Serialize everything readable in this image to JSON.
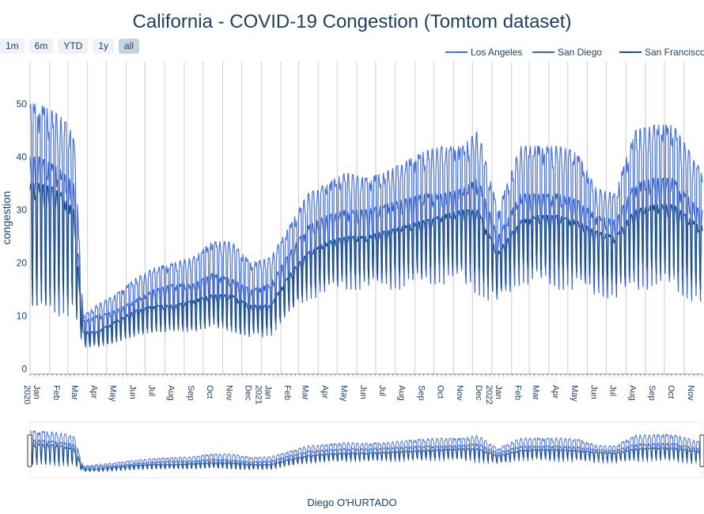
{
  "chart_data": {
    "type": "line",
    "title": "California - COVID-19 Congestion (Tomtom dataset)",
    "ylabel": "congestion",
    "xlabel": "",
    "footer": "Diego O'HURTADO",
    "x_range": [
      "2020-01-01",
      "2022-11-30"
    ],
    "ylim": [
      -1,
      58
    ],
    "yticks": [
      0,
      10,
      20,
      30,
      40,
      50
    ],
    "xticks": [
      {
        "date": "2020-01-01",
        "month": "Jan",
        "year": "2020"
      },
      {
        "date": "2020-02-01",
        "month": "Feb"
      },
      {
        "date": "2020-03-01",
        "month": "Mar"
      },
      {
        "date": "2020-04-01",
        "month": "Apr"
      },
      {
        "date": "2020-05-01",
        "month": "May"
      },
      {
        "date": "2020-06-01",
        "month": "Jun"
      },
      {
        "date": "2020-07-01",
        "month": "Jul"
      },
      {
        "date": "2020-08-01",
        "month": "Aug"
      },
      {
        "date": "2020-09-01",
        "month": "Sep"
      },
      {
        "date": "2020-10-01",
        "month": "Oct"
      },
      {
        "date": "2020-11-01",
        "month": "Nov"
      },
      {
        "date": "2020-12-01",
        "month": "Dec"
      },
      {
        "date": "2021-01-01",
        "month": "Jan",
        "year": "2021"
      },
      {
        "date": "2021-02-01",
        "month": "Feb"
      },
      {
        "date": "2021-03-01",
        "month": "Mar"
      },
      {
        "date": "2021-04-01",
        "month": "Apr"
      },
      {
        "date": "2021-05-01",
        "month": "May"
      },
      {
        "date": "2021-06-01",
        "month": "Jun"
      },
      {
        "date": "2021-07-01",
        "month": "Jul"
      },
      {
        "date": "2021-08-01",
        "month": "Aug"
      },
      {
        "date": "2021-09-01",
        "month": "Sep"
      },
      {
        "date": "2021-10-01",
        "month": "Oct"
      },
      {
        "date": "2021-11-01",
        "month": "Nov"
      },
      {
        "date": "2021-12-01",
        "month": "Dec"
      },
      {
        "date": "2022-01-01",
        "month": "Jan",
        "year": "2022"
      },
      {
        "date": "2022-02-01",
        "month": "Feb"
      },
      {
        "date": "2022-03-01",
        "month": "Mar"
      },
      {
        "date": "2022-04-01",
        "month": "Apr"
      },
      {
        "date": "2022-05-01",
        "month": "May"
      },
      {
        "date": "2022-06-01",
        "month": "Jun"
      },
      {
        "date": "2022-07-01",
        "month": "Jul"
      },
      {
        "date": "2022-08-01",
        "month": "Aug"
      },
      {
        "date": "2022-09-01",
        "month": "Sep"
      },
      {
        "date": "2022-10-01",
        "month": "Oct"
      },
      {
        "date": "2022-11-01",
        "month": "Nov"
      }
    ],
    "range_buttons": [
      "1m",
      "6m",
      "YTD",
      "1y",
      "all"
    ],
    "active_range": "all",
    "legend_position": "top-right",
    "grid": true,
    "range_slider": true,
    "series": [
      {
        "name": "Los Angeles",
        "color": "#4a72d6",
        "monthly": [
          {
            "date": "2020-01-15",
            "high": 50,
            "low": 12
          },
          {
            "date": "2020-02-15",
            "high": 48,
            "low": 12
          },
          {
            "date": "2020-03-10",
            "high": 45,
            "low": 12
          },
          {
            "date": "2020-03-25",
            "high": 10,
            "low": 6
          },
          {
            "date": "2020-04-15",
            "high": 12,
            "low": 5
          },
          {
            "date": "2020-05-15",
            "high": 14,
            "low": 7
          },
          {
            "date": "2020-06-15",
            "high": 17,
            "low": 8
          },
          {
            "date": "2020-07-15",
            "high": 19,
            "low": 9
          },
          {
            "date": "2020-08-15",
            "high": 20,
            "low": 9
          },
          {
            "date": "2020-09-15",
            "high": 21,
            "low": 10
          },
          {
            "date": "2020-10-15",
            "high": 24,
            "low": 11
          },
          {
            "date": "2020-11-15",
            "high": 24,
            "low": 10
          },
          {
            "date": "2020-12-15",
            "high": 20,
            "low": 9
          },
          {
            "date": "2021-01-15",
            "high": 21,
            "low": 9
          },
          {
            "date": "2021-02-15",
            "high": 27,
            "low": 12
          },
          {
            "date": "2021-03-15",
            "high": 33,
            "low": 15
          },
          {
            "date": "2021-04-15",
            "high": 35,
            "low": 16
          },
          {
            "date": "2021-05-15",
            "high": 37,
            "low": 17
          },
          {
            "date": "2021-06-15",
            "high": 36,
            "low": 17
          },
          {
            "date": "2021-07-15",
            "high": 37,
            "low": 17
          },
          {
            "date": "2021-08-15",
            "high": 39,
            "low": 17
          },
          {
            "date": "2021-09-15",
            "high": 41,
            "low": 18
          },
          {
            "date": "2021-10-15",
            "high": 42,
            "low": 18
          },
          {
            "date": "2021-11-15",
            "high": 42,
            "low": 18
          },
          {
            "date": "2021-12-10",
            "high": 45,
            "low": 17
          },
          {
            "date": "2022-01-10",
            "high": 30,
            "low": 14
          },
          {
            "date": "2022-02-15",
            "high": 42,
            "low": 18
          },
          {
            "date": "2022-03-15",
            "high": 42,
            "low": 18
          },
          {
            "date": "2022-04-15",
            "high": 42,
            "low": 17
          },
          {
            "date": "2022-05-15",
            "high": 41,
            "low": 17
          },
          {
            "date": "2022-06-15",
            "high": 34,
            "low": 15
          },
          {
            "date": "2022-07-15",
            "high": 33,
            "low": 14
          },
          {
            "date": "2022-08-15",
            "high": 45,
            "low": 17
          },
          {
            "date": "2022-09-15",
            "high": 46,
            "low": 17
          },
          {
            "date": "2022-10-15",
            "high": 46,
            "low": 17
          },
          {
            "date": "2022-11-25",
            "high": 38,
            "low": 14
          }
        ]
      },
      {
        "name": "San Diego",
        "color": "#3b63c4",
        "monthly": [
          {
            "date": "2020-01-15",
            "high": 40,
            "low": 10
          },
          {
            "date": "2020-02-15",
            "high": 38,
            "low": 10
          },
          {
            "date": "2020-03-10",
            "high": 35,
            "low": 10
          },
          {
            "date": "2020-03-25",
            "high": 9,
            "low": 4
          },
          {
            "date": "2020-04-15",
            "high": 10,
            "low": 4
          },
          {
            "date": "2020-05-15",
            "high": 11,
            "low": 5
          },
          {
            "date": "2020-06-15",
            "high": 13,
            "low": 6
          },
          {
            "date": "2020-07-15",
            "high": 15,
            "low": 7
          },
          {
            "date": "2020-08-15",
            "high": 16,
            "low": 7
          },
          {
            "date": "2020-09-15",
            "high": 16,
            "low": 7
          },
          {
            "date": "2020-10-15",
            "high": 18,
            "low": 8
          },
          {
            "date": "2020-11-15",
            "high": 17,
            "low": 7
          },
          {
            "date": "2020-12-15",
            "high": 15,
            "low": 6
          },
          {
            "date": "2021-01-15",
            "high": 16,
            "low": 6
          },
          {
            "date": "2021-02-15",
            "high": 22,
            "low": 10
          },
          {
            "date": "2021-03-15",
            "high": 27,
            "low": 13
          },
          {
            "date": "2021-04-15",
            "high": 29,
            "low": 14
          },
          {
            "date": "2021-05-15",
            "high": 30,
            "low": 15
          },
          {
            "date": "2021-06-15",
            "high": 30,
            "low": 15
          },
          {
            "date": "2021-07-15",
            "high": 31,
            "low": 15
          },
          {
            "date": "2021-08-15",
            "high": 32,
            "low": 15
          },
          {
            "date": "2021-09-15",
            "high": 33,
            "low": 16
          },
          {
            "date": "2021-10-15",
            "high": 33,
            "low": 16
          },
          {
            "date": "2021-11-15",
            "high": 34,
            "low": 16
          },
          {
            "date": "2021-12-10",
            "high": 36,
            "low": 14
          },
          {
            "date": "2022-01-10",
            "high": 25,
            "low": 12
          },
          {
            "date": "2022-02-15",
            "high": 33,
            "low": 16
          },
          {
            "date": "2022-03-15",
            "high": 33,
            "low": 16
          },
          {
            "date": "2022-04-15",
            "high": 33,
            "low": 15
          },
          {
            "date": "2022-05-15",
            "high": 32,
            "low": 15
          },
          {
            "date": "2022-06-15",
            "high": 29,
            "low": 14
          },
          {
            "date": "2022-07-15",
            "high": 28,
            "low": 13
          },
          {
            "date": "2022-08-15",
            "high": 35,
            "low": 15
          },
          {
            "date": "2022-09-15",
            "high": 36,
            "low": 15
          },
          {
            "date": "2022-10-15",
            "high": 36,
            "low": 15
          },
          {
            "date": "2022-11-25",
            "high": 30,
            "low": 12
          }
        ]
      },
      {
        "name": "San Francisco",
        "color": "#1c4f86",
        "monthly": [
          {
            "date": "2020-01-15",
            "high": 35,
            "low": 12
          },
          {
            "date": "2020-02-15",
            "high": 34,
            "low": 12
          },
          {
            "date": "2020-03-10",
            "high": 30,
            "low": 12
          },
          {
            "date": "2020-03-25",
            "high": 7,
            "low": 4
          },
          {
            "date": "2020-04-15",
            "high": 7,
            "low": 4
          },
          {
            "date": "2020-05-15",
            "high": 9,
            "low": 5
          },
          {
            "date": "2020-06-15",
            "high": 11,
            "low": 6
          },
          {
            "date": "2020-07-15",
            "high": 12,
            "low": 7
          },
          {
            "date": "2020-08-15",
            "high": 12,
            "low": 7
          },
          {
            "date": "2020-09-15",
            "high": 13,
            "low": 7
          },
          {
            "date": "2020-10-15",
            "high": 14,
            "low": 8
          },
          {
            "date": "2020-11-15",
            "high": 14,
            "low": 7
          },
          {
            "date": "2020-12-15",
            "high": 12,
            "low": 6
          },
          {
            "date": "2021-01-15",
            "high": 12,
            "low": 7
          },
          {
            "date": "2021-02-15",
            "high": 18,
            "low": 11
          },
          {
            "date": "2021-03-15",
            "high": 22,
            "low": 14
          },
          {
            "date": "2021-04-15",
            "high": 24,
            "low": 16
          },
          {
            "date": "2021-05-15",
            "high": 25,
            "low": 17
          },
          {
            "date": "2021-06-15",
            "high": 25,
            "low": 17
          },
          {
            "date": "2021-07-15",
            "high": 26,
            "low": 17
          },
          {
            "date": "2021-08-15",
            "high": 27,
            "low": 18
          },
          {
            "date": "2021-09-15",
            "high": 28,
            "low": 18
          },
          {
            "date": "2021-10-15",
            "high": 29,
            "low": 19
          },
          {
            "date": "2021-11-15",
            "high": 30,
            "low": 19
          },
          {
            "date": "2021-12-10",
            "high": 30,
            "low": 17
          },
          {
            "date": "2022-01-10",
            "high": 22,
            "low": 14
          },
          {
            "date": "2022-02-15",
            "high": 28,
            "low": 19
          },
          {
            "date": "2022-03-15",
            "high": 29,
            "low": 19
          },
          {
            "date": "2022-04-15",
            "high": 29,
            "low": 18
          },
          {
            "date": "2022-05-15",
            "high": 28,
            "low": 18
          },
          {
            "date": "2022-06-15",
            "high": 26,
            "low": 17
          },
          {
            "date": "2022-07-15",
            "high": 25,
            "low": 16
          },
          {
            "date": "2022-08-15",
            "high": 30,
            "low": 18
          },
          {
            "date": "2022-09-15",
            "high": 31,
            "low": 18
          },
          {
            "date": "2022-10-15",
            "high": 31,
            "low": 18
          },
          {
            "date": "2022-11-25",
            "high": 27,
            "low": 15
          }
        ]
      }
    ]
  }
}
